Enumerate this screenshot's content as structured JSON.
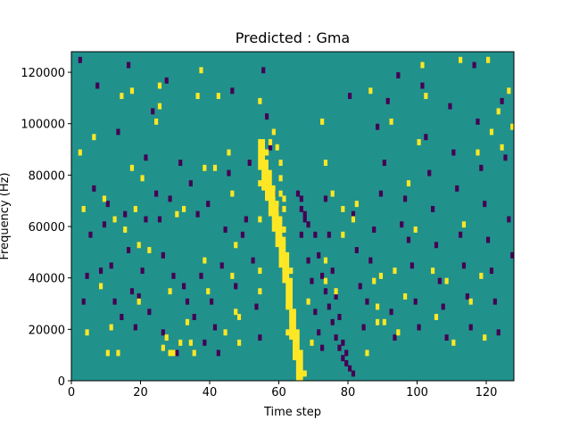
{
  "chart_data": {
    "type": "heatmap",
    "title": "Predicted : Gma",
    "xlabel": "Time step",
    "ylabel": "Frequency (Hz)",
    "xlim": [
      0,
      128
    ],
    "ylim": [
      0,
      128000
    ],
    "xticks": [
      0,
      20,
      40,
      60,
      80,
      100,
      120
    ],
    "yticks": [
      0,
      20000,
      40000,
      60000,
      80000,
      100000,
      120000
    ],
    "grid": false,
    "colors": {
      "background": "#21918c",
      "low": "#440154",
      "high": "#fde725"
    },
    "yellow_cells": [
      [
        2,
        88000
      ],
      [
        3,
        66000
      ],
      [
        4,
        18000
      ],
      [
        6,
        94000
      ],
      [
        8,
        36000
      ],
      [
        9,
        70000
      ],
      [
        10,
        10000
      ],
      [
        11,
        20000
      ],
      [
        12,
        62000
      ],
      [
        13,
        10000
      ],
      [
        14,
        110000
      ],
      [
        15,
        58000
      ],
      [
        17,
        82000
      ],
      [
        17,
        112000
      ],
      [
        18,
        66000
      ],
      [
        19,
        52000
      ],
      [
        19,
        30000
      ],
      [
        20,
        78000
      ],
      [
        22,
        50000
      ],
      [
        24,
        100000
      ],
      [
        25,
        106000
      ],
      [
        25,
        114000
      ],
      [
        26,
        12000
      ],
      [
        27,
        16000
      ],
      [
        28,
        10000
      ],
      [
        28,
        34000
      ],
      [
        29,
        10000
      ],
      [
        30,
        64000
      ],
      [
        31,
        14000
      ],
      [
        32,
        66000
      ],
      [
        33,
        22000
      ],
      [
        34,
        14000
      ],
      [
        35,
        10000
      ],
      [
        36,
        110000
      ],
      [
        37,
        120000
      ],
      [
        38,
        82000
      ],
      [
        38,
        46000
      ],
      [
        39,
        34000
      ],
      [
        41,
        82000
      ],
      [
        42,
        110000
      ],
      [
        44,
        18000
      ],
      [
        45,
        88000
      ],
      [
        46,
        72000
      ],
      [
        46,
        40000
      ],
      [
        47,
        52000
      ],
      [
        47,
        26000
      ],
      [
        48,
        24000
      ],
      [
        48,
        14000
      ],
      [
        54,
        108000
      ],
      [
        54,
        76000
      ],
      [
        54,
        62000
      ],
      [
        54,
        42000
      ],
      [
        54,
        34000
      ],
      [
        56,
        88000
      ],
      [
        57,
        92000
      ],
      [
        58,
        96000
      ],
      [
        59,
        90000
      ],
      [
        60,
        84000
      ],
      [
        60,
        78000
      ],
      [
        60,
        72000
      ],
      [
        61,
        70000
      ],
      [
        61,
        66000
      ],
      [
        61,
        58000
      ],
      [
        62,
        28000
      ],
      [
        62,
        18000
      ],
      [
        63,
        42000
      ],
      [
        64,
        12000
      ],
      [
        65,
        8000
      ],
      [
        66,
        2000
      ],
      [
        67,
        2000
      ],
      [
        68,
        30000
      ],
      [
        69,
        14000
      ],
      [
        72,
        100000
      ],
      [
        73,
        84000
      ],
      [
        73,
        46000
      ],
      [
        73,
        38000
      ],
      [
        75,
        72000
      ],
      [
        76,
        34000
      ],
      [
        78,
        66000
      ],
      [
        78,
        56000
      ],
      [
        81,
        62000
      ],
      [
        82,
        68000
      ],
      [
        85,
        10000
      ],
      [
        86,
        112000
      ],
      [
        87,
        38000
      ],
      [
        88,
        28000
      ],
      [
        88,
        22000
      ],
      [
        89,
        40000
      ],
      [
        90,
        22000
      ],
      [
        92,
        100000
      ],
      [
        93,
        42000
      ],
      [
        94,
        18000
      ],
      [
        96,
        32000
      ],
      [
        97,
        76000
      ],
      [
        99,
        58000
      ],
      [
        100,
        92000
      ],
      [
        101,
        122000
      ],
      [
        102,
        110000
      ],
      [
        104,
        42000
      ],
      [
        105,
        24000
      ],
      [
        108,
        38000
      ],
      [
        110,
        14000
      ],
      [
        112,
        124000
      ],
      [
        113,
        60000
      ],
      [
        115,
        30000
      ],
      [
        117,
        88000
      ],
      [
        118,
        40000
      ],
      [
        119,
        16000
      ],
      [
        120,
        124000
      ],
      [
        121,
        96000
      ],
      [
        123,
        104000
      ],
      [
        124,
        90000
      ],
      [
        126,
        112000
      ],
      [
        127,
        98000
      ]
    ],
    "dark_cells": [
      [
        2,
        124000
      ],
      [
        3,
        30000
      ],
      [
        4,
        40000
      ],
      [
        5,
        56000
      ],
      [
        6,
        74000
      ],
      [
        7,
        114000
      ],
      [
        8,
        42000
      ],
      [
        9,
        60000
      ],
      [
        10,
        68000
      ],
      [
        11,
        44000
      ],
      [
        12,
        30000
      ],
      [
        13,
        96000
      ],
      [
        14,
        24000
      ],
      [
        15,
        64000
      ],
      [
        16,
        122000
      ],
      [
        16,
        50000
      ],
      [
        17,
        34000
      ],
      [
        18,
        20000
      ],
      [
        19,
        32000
      ],
      [
        20,
        42000
      ],
      [
        21,
        62000
      ],
      [
        21,
        86000
      ],
      [
        22,
        26000
      ],
      [
        23,
        104000
      ],
      [
        24,
        72000
      ],
      [
        25,
        62000
      ],
      [
        26,
        48000
      ],
      [
        26,
        18000
      ],
      [
        27,
        116000
      ],
      [
        28,
        70000
      ],
      [
        29,
        40000
      ],
      [
        30,
        10000
      ],
      [
        31,
        84000
      ],
      [
        32,
        36000
      ],
      [
        33,
        30000
      ],
      [
        34,
        76000
      ],
      [
        35,
        24000
      ],
      [
        36,
        64000
      ],
      [
        37,
        40000
      ],
      [
        38,
        14000
      ],
      [
        39,
        68000
      ],
      [
        40,
        30000
      ],
      [
        41,
        20000
      ],
      [
        42,
        10000
      ],
      [
        43,
        44000
      ],
      [
        44,
        58000
      ],
      [
        45,
        80000
      ],
      [
        46,
        112000
      ],
      [
        47,
        36000
      ],
      [
        48,
        24000
      ],
      [
        49,
        56000
      ],
      [
        50,
        62000
      ],
      [
        51,
        84000
      ],
      [
        52,
        46000
      ],
      [
        53,
        28000
      ],
      [
        54,
        16000
      ],
      [
        55,
        120000
      ],
      [
        56,
        102000
      ],
      [
        57,
        90000
      ],
      [
        58,
        72000
      ],
      [
        59,
        66000
      ],
      [
        60,
        50000
      ],
      [
        61,
        40000
      ],
      [
        62,
        28000
      ],
      [
        63,
        20000
      ],
      [
        64,
        10000
      ],
      [
        65,
        72000
      ],
      [
        66,
        56000
      ],
      [
        67,
        64000
      ],
      [
        68,
        46000
      ],
      [
        69,
        38000
      ],
      [
        70,
        26000
      ],
      [
        71,
        18000
      ],
      [
        72,
        12000
      ],
      [
        73,
        70000
      ],
      [
        74,
        56000
      ],
      [
        75,
        42000
      ],
      [
        76,
        32000
      ],
      [
        77,
        24000
      ],
      [
        78,
        14000
      ],
      [
        79,
        10000
      ],
      [
        80,
        110000
      ],
      [
        81,
        64000
      ],
      [
        82,
        50000
      ],
      [
        83,
        36000
      ],
      [
        84,
        20000
      ],
      [
        85,
        30000
      ],
      [
        86,
        46000
      ],
      [
        87,
        58000
      ],
      [
        88,
        98000
      ],
      [
        89,
        72000
      ],
      [
        90,
        84000
      ],
      [
        91,
        108000
      ],
      [
        92,
        26000
      ],
      [
        93,
        16000
      ],
      [
        94,
        118000
      ],
      [
        95,
        60000
      ],
      [
        96,
        70000
      ],
      [
        97,
        54000
      ],
      [
        98,
        44000
      ],
      [
        99,
        30000
      ],
      [
        100,
        20000
      ],
      [
        101,
        114000
      ],
      [
        102,
        94000
      ],
      [
        103,
        80000
      ],
      [
        104,
        66000
      ],
      [
        105,
        52000
      ],
      [
        106,
        38000
      ],
      [
        107,
        28000
      ],
      [
        108,
        16000
      ],
      [
        109,
        106000
      ],
      [
        110,
        88000
      ],
      [
        111,
        74000
      ],
      [
        112,
        56000
      ],
      [
        113,
        44000
      ],
      [
        114,
        32000
      ],
      [
        115,
        20000
      ],
      [
        116,
        122000
      ],
      [
        117,
        100000
      ],
      [
        118,
        82000
      ],
      [
        119,
        68000
      ],
      [
        120,
        54000
      ],
      [
        121,
        42000
      ],
      [
        122,
        30000
      ],
      [
        123,
        18000
      ],
      [
        124,
        108000
      ],
      [
        125,
        86000
      ],
      [
        126,
        62000
      ],
      [
        127,
        48000
      ],
      [
        66,
        70000
      ],
      [
        66,
        66000
      ],
      [
        67,
        62000
      ],
      [
        68,
        60000
      ],
      [
        70,
        56000
      ],
      [
        71,
        48000
      ],
      [
        72,
        40000
      ],
      [
        73,
        34000
      ],
      [
        74,
        28000
      ],
      [
        75,
        22000
      ],
      [
        76,
        16000
      ],
      [
        77,
        12000
      ],
      [
        78,
        8000
      ],
      [
        79,
        6000
      ],
      [
        80,
        4000
      ],
      [
        81,
        2000
      ]
    ],
    "yellow_bands": [
      [
        54,
        88000
      ],
      [
        55,
        80000
      ],
      [
        56,
        76000
      ],
      [
        57,
        70000
      ],
      [
        58,
        64000
      ],
      [
        59,
        58000
      ],
      [
        60,
        50000
      ],
      [
        61,
        44000
      ],
      [
        62,
        34000
      ],
      [
        63,
        22000
      ],
      [
        64,
        14000
      ],
      [
        65,
        6000
      ]
    ]
  }
}
